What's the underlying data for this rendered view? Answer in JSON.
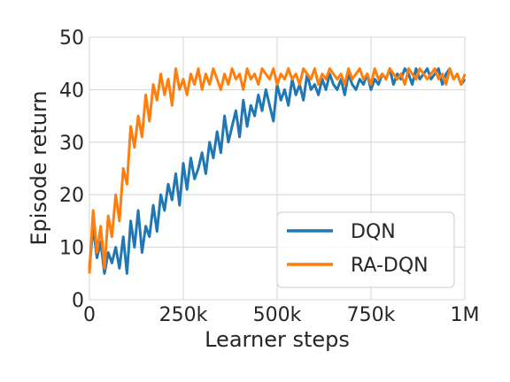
{
  "chart_data": {
    "type": "line",
    "title": "",
    "xlabel": "Learner steps",
    "ylabel": "Episode return",
    "xlim": [
      0,
      1000000
    ],
    "ylim": [
      0,
      50
    ],
    "xticks": [
      0,
      250000,
      500000,
      750000,
      1000000
    ],
    "xtick_labels": [
      "0",
      "250k",
      "500k",
      "750k",
      "1M"
    ],
    "yticks": [
      0,
      10,
      20,
      30,
      40,
      50
    ],
    "ytick_labels": [
      "0",
      "10",
      "20",
      "30",
      "40",
      "50"
    ],
    "grid": true,
    "legend_position": "lower-right",
    "colors": {
      "DQN": "#1f77b4",
      "RA-DQN": "#ff7f0e"
    },
    "series": [
      {
        "name": "DQN",
        "x": [
          0,
          10000,
          20000,
          30000,
          40000,
          50000,
          60000,
          70000,
          80000,
          90000,
          100000,
          110000,
          120000,
          130000,
          140000,
          150000,
          160000,
          170000,
          180000,
          190000,
          200000,
          210000,
          220000,
          230000,
          240000,
          250000,
          260000,
          270000,
          280000,
          290000,
          300000,
          310000,
          320000,
          330000,
          340000,
          350000,
          360000,
          370000,
          380000,
          390000,
          400000,
          410000,
          420000,
          430000,
          440000,
          450000,
          460000,
          470000,
          480000,
          490000,
          500000,
          510000,
          520000,
          530000,
          540000,
          550000,
          560000,
          570000,
          580000,
          590000,
          600000,
          610000,
          620000,
          630000,
          640000,
          650000,
          660000,
          670000,
          680000,
          690000,
          700000,
          710000,
          720000,
          730000,
          740000,
          750000,
          760000,
          770000,
          780000,
          790000,
          800000,
          810000,
          820000,
          830000,
          840000,
          850000,
          860000,
          870000,
          880000,
          890000,
          900000,
          910000,
          920000,
          930000,
          940000,
          950000,
          960000,
          970000,
          980000,
          990000,
          1000000
        ],
        "values": [
          6,
          14,
          8,
          11,
          5,
          9,
          7,
          10,
          6,
          12,
          5,
          15,
          10,
          17,
          9,
          14,
          12,
          18,
          13,
          20,
          17,
          22,
          19,
          24,
          18,
          26,
          21,
          27,
          23,
          25,
          28,
          24,
          30,
          27,
          32,
          28,
          35,
          30,
          33,
          36,
          31,
          38,
          33,
          37,
          35,
          39,
          36,
          40,
          37,
          34,
          41,
          38,
          40,
          37,
          42,
          39,
          41,
          38,
          43,
          40,
          41,
          39,
          42,
          40,
          43,
          41,
          40,
          42,
          39,
          43,
          41,
          40,
          42,
          41,
          43,
          40,
          42,
          41,
          43,
          42,
          44,
          41,
          43,
          42,
          44,
          43,
          41,
          44,
          42,
          43,
          44,
          42,
          43,
          44,
          41,
          43,
          44,
          42,
          43,
          41,
          42
        ]
      },
      {
        "name": "RA-DQN",
        "x": [
          0,
          10000,
          20000,
          30000,
          40000,
          50000,
          60000,
          70000,
          80000,
          90000,
          100000,
          110000,
          120000,
          130000,
          140000,
          150000,
          160000,
          170000,
          180000,
          190000,
          200000,
          210000,
          220000,
          230000,
          240000,
          250000,
          260000,
          270000,
          280000,
          290000,
          300000,
          310000,
          320000,
          330000,
          340000,
          350000,
          360000,
          370000,
          380000,
          390000,
          400000,
          410000,
          420000,
          430000,
          440000,
          450000,
          460000,
          470000,
          480000,
          490000,
          500000,
          510000,
          520000,
          530000,
          540000,
          550000,
          560000,
          570000,
          580000,
          590000,
          600000,
          610000,
          620000,
          630000,
          640000,
          650000,
          660000,
          670000,
          680000,
          690000,
          700000,
          710000,
          720000,
          730000,
          740000,
          750000,
          760000,
          770000,
          780000,
          790000,
          800000,
          810000,
          820000,
          830000,
          840000,
          850000,
          860000,
          870000,
          880000,
          890000,
          900000,
          910000,
          920000,
          930000,
          940000,
          950000,
          960000,
          970000,
          980000,
          990000,
          1000000
        ],
        "values": [
          5,
          17,
          9,
          14,
          6,
          16,
          12,
          20,
          15,
          25,
          22,
          33,
          29,
          35,
          31,
          39,
          34,
          41,
          38,
          43,
          39,
          42,
          37,
          44,
          40,
          42,
          39,
          43,
          41,
          44,
          40,
          43,
          41,
          44,
          42,
          40,
          43,
          41,
          44,
          42,
          43,
          40,
          44,
          42,
          43,
          41,
          44,
          43,
          42,
          44,
          41,
          43,
          42,
          44,
          42,
          43,
          41,
          44,
          43,
          42,
          44,
          41,
          43,
          42,
          44,
          43,
          42,
          43,
          41,
          44,
          42,
          43,
          44,
          42,
          43,
          41,
          44,
          42,
          43,
          42,
          44,
          43,
          42,
          43,
          41,
          44,
          43,
          42,
          44,
          43,
          42,
          43,
          44,
          42,
          43,
          41,
          44,
          42,
          43,
          41,
          43
        ]
      }
    ]
  }
}
